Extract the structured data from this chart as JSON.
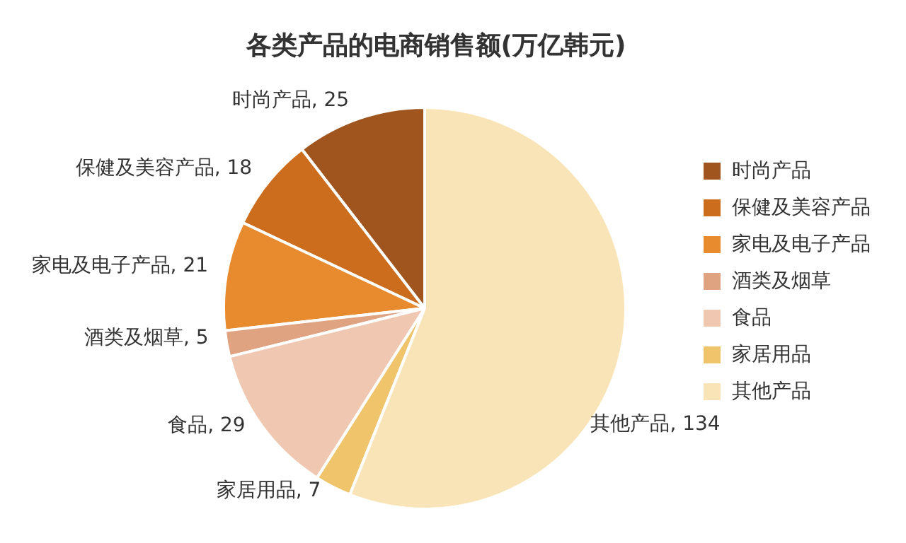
{
  "chart_data": {
    "type": "pie",
    "title": "各类产品的电商销售额(万亿韩元)",
    "categories": [
      "时尚产品",
      "保健及美容产品",
      "家电及电子产品",
      "酒类及烟草",
      "食品",
      "家居用品",
      "其他产品"
    ],
    "values": [
      25,
      18,
      21,
      5,
      29,
      7,
      134
    ],
    "colors": [
      "#a0541e",
      "#cc6d1e",
      "#e88a2e",
      "#e0a382",
      "#f0c7b0",
      "#f0c46a",
      "#f9e4b7"
    ],
    "value_labels": [
      "时尚产品, 25",
      "保健及美容产品, 18",
      "家电及电子产品, 21",
      "酒类及烟草, 5",
      "食品, 29",
      "家居用品, 7",
      "其他产品, 134"
    ],
    "legend": "right"
  }
}
